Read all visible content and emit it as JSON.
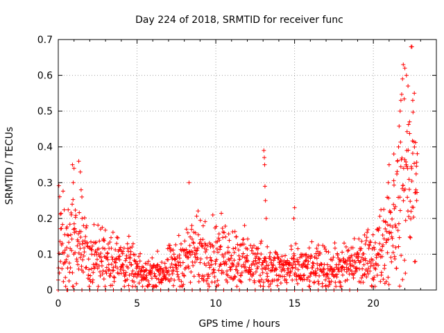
{
  "chart_data": {
    "type": "scatter",
    "title": "Day 224 of 2018, SRMTID for receiver func",
    "xlabel": "GPS time / hours",
    "ylabel": "SRMTID / TECUs",
    "xlim": [
      0,
      24
    ],
    "ylim": [
      0,
      0.7
    ],
    "x_ticks": [
      0,
      5,
      10,
      15,
      20
    ],
    "x_tick_labels": [
      "0",
      "5",
      "10",
      "15",
      "20"
    ],
    "y_ticks": [
      0,
      0.1,
      0.2,
      0.3,
      0.4,
      0.5,
      0.6,
      0.7
    ],
    "y_tick_labels": [
      "0",
      "0.1",
      "0.2",
      "0.3",
      "0.4",
      "0.5",
      "0.6",
      "0.7"
    ],
    "grid": true,
    "marker": "plus",
    "color": "#ff0000",
    "series": [
      {
        "name": "SRMTID",
        "profile": [
          [
            0.0,
            0.15
          ],
          [
            0.5,
            0.13
          ],
          [
            1.0,
            0.14
          ],
          [
            1.5,
            0.12
          ],
          [
            2.0,
            0.09
          ],
          [
            2.5,
            0.09
          ],
          [
            3.0,
            0.1
          ],
          [
            3.5,
            0.09
          ],
          [
            4.0,
            0.08
          ],
          [
            4.5,
            0.07
          ],
          [
            5.0,
            0.05
          ],
          [
            5.5,
            0.04
          ],
          [
            6.0,
            0.05
          ],
          [
            6.5,
            0.05
          ],
          [
            7.0,
            0.06
          ],
          [
            7.5,
            0.07
          ],
          [
            8.0,
            0.09
          ],
          [
            8.5,
            0.1
          ],
          [
            9.0,
            0.11
          ],
          [
            9.5,
            0.11
          ],
          [
            10.0,
            0.1
          ],
          [
            10.5,
            0.1
          ],
          [
            11.0,
            0.1
          ],
          [
            11.5,
            0.09
          ],
          [
            12.0,
            0.08
          ],
          [
            12.5,
            0.07
          ],
          [
            13.0,
            0.08
          ],
          [
            13.5,
            0.06
          ],
          [
            14.0,
            0.06
          ],
          [
            14.5,
            0.06
          ],
          [
            15.0,
            0.06
          ],
          [
            15.5,
            0.06
          ],
          [
            16.0,
            0.06
          ],
          [
            16.5,
            0.06
          ],
          [
            17.0,
            0.06
          ],
          [
            17.5,
            0.06
          ],
          [
            18.0,
            0.06
          ],
          [
            18.5,
            0.07
          ],
          [
            19.0,
            0.08
          ],
          [
            19.5,
            0.08
          ],
          [
            20.0,
            0.09
          ],
          [
            20.5,
            0.12
          ],
          [
            21.0,
            0.17
          ],
          [
            21.5,
            0.22
          ],
          [
            22.0,
            0.3
          ],
          [
            22.5,
            0.32
          ],
          [
            22.8,
            0.25
          ]
        ],
        "outliers": [
          [
            0.9,
            0.35
          ],
          [
            1.0,
            0.34
          ],
          [
            1.3,
            0.36
          ],
          [
            1.4,
            0.33
          ],
          [
            1.45,
            0.28
          ],
          [
            1.5,
            0.26
          ],
          [
            0.95,
            0.3
          ],
          [
            8.3,
            0.3
          ],
          [
            13.05,
            0.39
          ],
          [
            13.08,
            0.37
          ],
          [
            13.1,
            0.35
          ],
          [
            13.12,
            0.29
          ],
          [
            13.15,
            0.25
          ],
          [
            13.2,
            0.2
          ],
          [
            15.0,
            0.23
          ],
          [
            14.95,
            0.2
          ],
          [
            22.4,
            0.68
          ],
          [
            22.45,
            0.68
          ],
          [
            21.9,
            0.63
          ],
          [
            22.0,
            0.62
          ],
          [
            21.85,
            0.59
          ],
          [
            22.1,
            0.6
          ],
          [
            22.2,
            0.57
          ],
          [
            22.6,
            0.55
          ],
          [
            22.5,
            0.53
          ],
          [
            21.7,
            0.5
          ],
          [
            21.75,
            0.53
          ],
          [
            22.3,
            0.47
          ],
          [
            21.6,
            0.4
          ],
          [
            21.3,
            0.38
          ],
          [
            21.0,
            0.35
          ],
          [
            20.95,
            0.3
          ],
          [
            22.7,
            0.28
          ],
          [
            22.75,
            0.25
          ]
        ],
        "zero_line_points": [
          0.0,
          0.55,
          0.6,
          1.0,
          1.5,
          2.0,
          2.5,
          3.0,
          3.5,
          4.0,
          4.5,
          5.0,
          5.5,
          6.0,
          6.5,
          7.0,
          7.5,
          8.0,
          8.5,
          9.0,
          9.5,
          10.0,
          10.5,
          11.0,
          11.5,
          12.0,
          12.5,
          13.0,
          13.5,
          14.0,
          14.5,
          15.0,
          15.5,
          16.0,
          16.5,
          17.0,
          17.5,
          18.0,
          18.5,
          19.0
        ]
      }
    ]
  }
}
